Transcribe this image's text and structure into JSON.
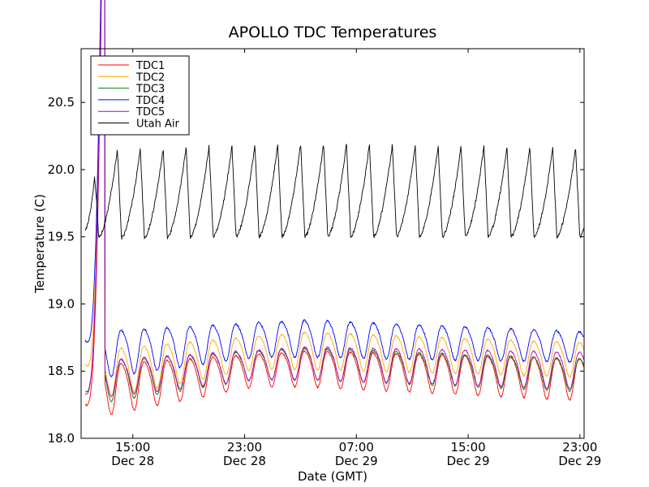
{
  "chart_data": {
    "type": "line",
    "title": "APOLLO TDC Temperatures",
    "xlabel": "Date (GMT)",
    "ylabel": "Temperature (C)",
    "x_unit": "hours since Dec 28 00:00 GMT",
    "xlim": [
      11.3,
      47.3
    ],
    "ylim": [
      18.0,
      20.9
    ],
    "yticks": [
      18.0,
      18.5,
      19.0,
      19.5,
      20.0,
      20.5
    ],
    "ytick_labels": [
      "18.0",
      "18.5",
      "19.0",
      "19.5",
      "20.0",
      "20.5"
    ],
    "xticks": [
      {
        "x": 15,
        "time": "15:00",
        "date": "Dec 28"
      },
      {
        "x": 23,
        "time": "23:00",
        "date": "Dec 28"
      },
      {
        "x": 31,
        "time": "07:00",
        "date": "Dec 29"
      },
      {
        "x": 39,
        "time": "15:00",
        "date": "Dec 29"
      },
      {
        "x": 47,
        "time": "23:00",
        "date": "Dec 29"
      }
    ],
    "legend_position": "top-left",
    "series": [
      {
        "name": "TDC1",
        "color": "#ff0000",
        "oscillation_period_hours": 1.64,
        "start": 18.25,
        "min": 18.16,
        "peak_early": 18.55,
        "peak_mid": 18.66,
        "peak_late": 18.6,
        "trough_mid": 18.4,
        "trough_late": 18.3,
        "noise": 0.006
      },
      {
        "name": "TDC2",
        "color": "#ffaa00",
        "oscillation_period_hours": 1.64,
        "start": 18.55,
        "min": 18.29,
        "peak_early": 18.66,
        "peak_mid": 18.8,
        "peak_late": 18.72,
        "trough_mid": 18.53,
        "trough_late": 18.47,
        "noise": 0.006
      },
      {
        "name": "TDC3",
        "color": "#008000",
        "oscillation_period_hours": 1.64,
        "start": 18.35,
        "min": 18.26,
        "peak_early": 18.58,
        "peak_mid": 18.68,
        "peak_late": 18.6,
        "trough_mid": 18.45,
        "trough_late": 18.36,
        "noise": 0.006
      },
      {
        "name": "TDC4",
        "color": "#0000ff",
        "oscillation_period_hours": 1.64,
        "start": 18.73,
        "min": 18.45,
        "peak_early": 18.8,
        "peak_mid": 18.89,
        "peak_late": 18.8,
        "trough_mid": 18.62,
        "trough_late": 18.58,
        "noise": 0.007
      },
      {
        "name": "TDC5",
        "color": "#bf00bf",
        "oscillation_period_hours": 1.64,
        "start": 18.33,
        "min": 18.3,
        "peak_early": 18.58,
        "peak_mid": 18.69,
        "peak_late": 18.65,
        "trough_mid": 18.45,
        "trough_late": 18.38,
        "noise": 0.006
      },
      {
        "name": "Utah Air",
        "color": "#000000",
        "oscillation_period_hours": 1.64,
        "start": 19.55,
        "min": 19.49,
        "peak_early": 20.14,
        "peak_mid": 20.2,
        "peak_late": 20.16,
        "trough_mid": 19.5,
        "trough_late": 19.5,
        "noise": 0.012
      }
    ]
  }
}
